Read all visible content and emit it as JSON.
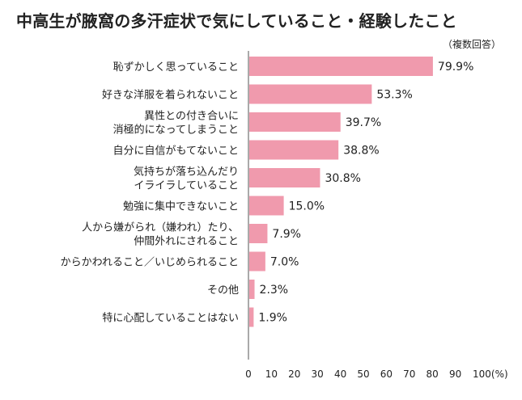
{
  "chart_data": {
    "type": "bar",
    "orientation": "horizontal",
    "title": "中高生が腋窩の多汗症状で気にしていること・経験したこと",
    "note": "（複数回答）",
    "xlabel": "",
    "ylabel": "",
    "xlim": [
      0,
      100
    ],
    "x_ticks": [
      "0",
      "10",
      "20",
      "30",
      "40",
      "50",
      "60",
      "70",
      "80",
      "90",
      "100(%)"
    ],
    "grid": false,
    "bar_color": "#f09aad",
    "categories": [
      [
        "恥ずかしく思っていること"
      ],
      [
        "好きな洋服を着られないこと"
      ],
      [
        "異性との付き合いに",
        "消極的になってしまうこと"
      ],
      [
        "自分に自信がもてないこと"
      ],
      [
        "気持ちが落ち込んだり",
        "イライラしていること"
      ],
      [
        "勉強に集中できないこと"
      ],
      [
        "人から嫌がられ（嫌われ）たり、",
        "仲間外れにされること"
      ],
      [
        "からかわれること／いじめられること"
      ],
      [
        "その他"
      ],
      [
        "特に心配していることはない"
      ]
    ],
    "values": [
      79.9,
      53.3,
      39.7,
      38.8,
      30.8,
      15.0,
      7.9,
      7.0,
      2.3,
      1.9
    ],
    "value_labels": [
      "79.9%",
      "53.3%",
      "39.7%",
      "38.8%",
      "30.8%",
      "15.0%",
      "7.9%",
      "7.0%",
      "2.3%",
      "1.9%"
    ]
  }
}
